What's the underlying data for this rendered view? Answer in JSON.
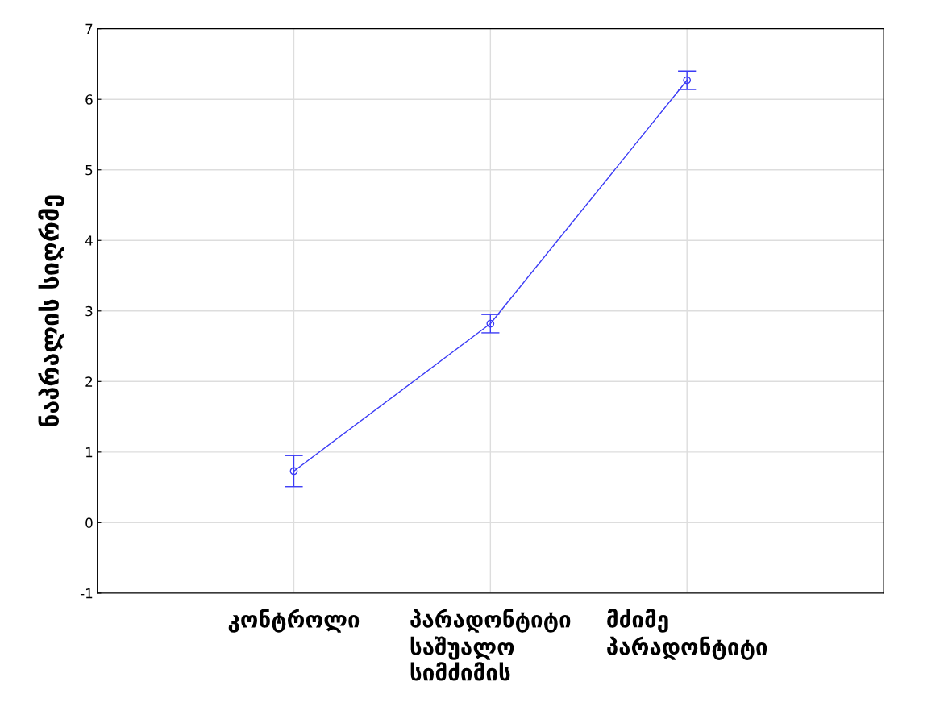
{
  "chart_data": {
    "type": "line",
    "ylabel": "ნაპრალის სიღრმე",
    "categories": [
      "კონტროლი",
      "პარადონტიტი\nსაშუალო\nსიმძიმის",
      "მძიმე\nპარადონტიტი"
    ],
    "series": [
      {
        "color": "#3b3bf5",
        "values": [
          0.73,
          2.82,
          6.27
        ],
        "errors": [
          0.22,
          0.13,
          0.13
        ]
      }
    ],
    "ylim": [
      -1,
      7
    ],
    "yticks": [
      -1,
      0,
      1,
      2,
      3,
      4,
      5,
      6,
      7
    ],
    "grid": true,
    "marker": "circle",
    "line_style": "solid"
  }
}
